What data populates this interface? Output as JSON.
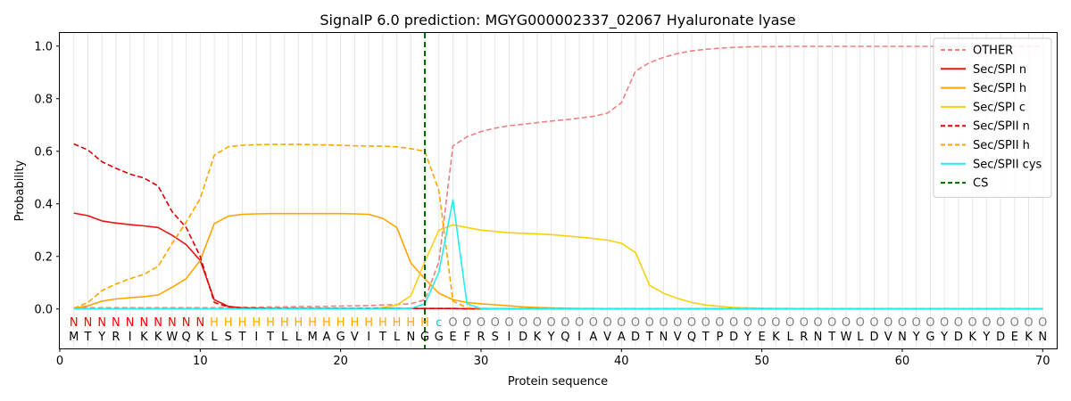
{
  "chart_data": {
    "type": "line",
    "title": "SignalP 6.0 prediction: MGYG000002337_02067 Hyaluronate lyase",
    "xlabel": "Protein sequence",
    "ylabel": "Probability",
    "xlim": [
      0,
      71
    ],
    "ylim": [
      -0.15,
      1.05
    ],
    "xticks": [
      0,
      10,
      20,
      30,
      40,
      50,
      60,
      70
    ],
    "yticks": [
      0.0,
      0.2,
      0.4,
      0.6,
      0.8,
      1.0
    ],
    "ytick_labels": [
      "0.0",
      "0.2",
      "0.4",
      "0.6",
      "0.8",
      "1.0"
    ],
    "grid": "vertical lines at each residue",
    "legend_position": "top-right",
    "cleavage_site": 26,
    "sequence": [
      "M",
      "T",
      "Y",
      "R",
      "I",
      "K",
      "K",
      "W",
      "Q",
      "K",
      "L",
      "S",
      "T",
      "I",
      "T",
      "L",
      "L",
      "M",
      "A",
      "G",
      "V",
      "I",
      "T",
      "L",
      "N",
      "G",
      "G",
      "E",
      "F",
      "R",
      "S",
      "I",
      "D",
      "K",
      "Y",
      "Q",
      "I",
      "A",
      "V",
      "A",
      "D",
      "T",
      "N",
      "V",
      "Q",
      "T",
      "P",
      "D",
      "Y",
      "E",
      "K",
      "L",
      "R",
      "N",
      "T",
      "W",
      "L",
      "D",
      "V",
      "N",
      "Y",
      "G",
      "Y",
      "D",
      "K",
      "Y",
      "D",
      "E",
      "K",
      "N"
    ],
    "region_labels": [
      "N",
      "N",
      "N",
      "N",
      "N",
      "N",
      "N",
      "N",
      "N",
      "N",
      "H",
      "H",
      "H",
      "H",
      "H",
      "H",
      "H",
      "H",
      "H",
      "H",
      "H",
      "H",
      "H",
      "H",
      "H",
      "H",
      "c",
      "O",
      "O",
      "O",
      "O",
      "O",
      "O",
      "O",
      "O",
      "O",
      "O",
      "O",
      "O",
      "O",
      "O",
      "O",
      "O",
      "O",
      "O",
      "O",
      "O",
      "O",
      "O",
      "O",
      "O",
      "O",
      "O",
      "O",
      "O",
      "O",
      "O",
      "O",
      "O",
      "O",
      "O",
      "O",
      "O",
      "O",
      "O",
      "O",
      "O",
      "O",
      "O",
      "O"
    ],
    "region_colors": {
      "N": "#ff0000",
      "H": "#ffa500",
      "c": "#00c8c8",
      "O": "#808080"
    },
    "series": [
      {
        "name": "OTHER",
        "color": "#f08080",
        "dash": true,
        "values": [
          0.005,
          0.005,
          0.005,
          0.005,
          0.005,
          0.005,
          0.005,
          0.005,
          0.005,
          0.005,
          0.005,
          0.006,
          0.007,
          0.007,
          0.008,
          0.008,
          0.009,
          0.009,
          0.01,
          0.011,
          0.012,
          0.013,
          0.015,
          0.017,
          0.02,
          0.035,
          0.18,
          0.62,
          0.655,
          0.675,
          0.688,
          0.697,
          0.703,
          0.709,
          0.715,
          0.72,
          0.726,
          0.733,
          0.745,
          0.785,
          0.905,
          0.937,
          0.957,
          0.972,
          0.982,
          0.988,
          0.992,
          0.995,
          0.997,
          0.998,
          0.998,
          0.999,
          0.999,
          0.999,
          0.999,
          0.999,
          0.999,
          0.999,
          0.999,
          0.999,
          0.999,
          0.999,
          0.999,
          0.999,
          0.999,
          0.999,
          0.999,
          0.999,
          0.999,
          0.999
        ]
      },
      {
        "name": "Sec/SPI n",
        "color": "#ee1111",
        "dash": false,
        "values": [
          0.365,
          0.355,
          0.335,
          0.327,
          0.321,
          0.316,
          0.31,
          0.28,
          0.245,
          0.185,
          0.035,
          0.01,
          0.004,
          0.003,
          0.002,
          0.002,
          0.002,
          0.002,
          0.002,
          0.002,
          0.002,
          0.002,
          0.002,
          0.002,
          0.002,
          0.002,
          0.002,
          0.002,
          0.001,
          0.001,
          0.001,
          0.001,
          0.001,
          0.001,
          0.001,
          0.001,
          0.001,
          0.001,
          0.001,
          0.001,
          0.001,
          0.001,
          0.001,
          0.001,
          0.001,
          0.001,
          0.001,
          0.001,
          0.001,
          0.001,
          0.001,
          0.001,
          0.001,
          0.001,
          0.001,
          0.001,
          0.001,
          0.001,
          0.001,
          0.001,
          0.001,
          0.001,
          0.001,
          0.001,
          0.001,
          0.001,
          0.001,
          0.001,
          0.001,
          0.001
        ]
      },
      {
        "name": "Sec/SPI h",
        "color": "#ffa500",
        "dash": false,
        "values": [
          0.003,
          0.012,
          0.03,
          0.038,
          0.043,
          0.047,
          0.053,
          0.083,
          0.115,
          0.185,
          0.325,
          0.353,
          0.36,
          0.362,
          0.363,
          0.363,
          0.363,
          0.363,
          0.363,
          0.363,
          0.362,
          0.36,
          0.345,
          0.31,
          0.175,
          0.115,
          0.06,
          0.035,
          0.025,
          0.02,
          0.016,
          0.012,
          0.008,
          0.006,
          0.004,
          0.003,
          0.002,
          0.002,
          0.001,
          0.001,
          0.001,
          0.001,
          0.001,
          0.001,
          0.001,
          0.001,
          0.001,
          0.001,
          0.001,
          0.001,
          0.001,
          0.001,
          0.001,
          0.001,
          0.001,
          0.001,
          0.001,
          0.001,
          0.001,
          0.001,
          0.001,
          0.001,
          0.001,
          0.001,
          0.001,
          0.001,
          0.001,
          0.001,
          0.001,
          0.001
        ]
      },
      {
        "name": "Sec/SPI c",
        "color": "#f7d10a",
        "dash": false,
        "values": [
          0.001,
          0.001,
          0.001,
          0.001,
          0.001,
          0.001,
          0.001,
          0.001,
          0.001,
          0.001,
          0.001,
          0.001,
          0.001,
          0.001,
          0.001,
          0.001,
          0.001,
          0.001,
          0.001,
          0.001,
          0.001,
          0.002,
          0.005,
          0.015,
          0.05,
          0.18,
          0.3,
          0.32,
          0.31,
          0.3,
          0.295,
          0.29,
          0.288,
          0.286,
          0.283,
          0.278,
          0.274,
          0.268,
          0.262,
          0.25,
          0.215,
          0.09,
          0.06,
          0.04,
          0.025,
          0.015,
          0.01,
          0.006,
          0.004,
          0.003,
          0.002,
          0.002,
          0.001,
          0.001,
          0.001,
          0.001,
          0.001,
          0.001,
          0.001,
          0.001,
          0.001,
          0.001,
          0.001,
          0.001,
          0.001,
          0.001,
          0.001,
          0.001,
          0.001,
          0.001
        ]
      },
      {
        "name": "Sec/SPII n",
        "color": "#dd0000",
        "dash": true,
        "values": [
          0.628,
          0.605,
          0.56,
          0.535,
          0.513,
          0.498,
          0.468,
          0.37,
          0.31,
          0.2,
          0.025,
          0.008,
          0.004,
          0.003,
          0.002,
          0.002,
          0.002,
          0.002,
          0.002,
          0.002,
          0.002,
          0.002,
          0.002,
          0.002,
          0.002,
          0.002,
          0.002,
          0.002,
          0.001,
          0.001,
          0.001,
          0.001,
          0.001,
          0.001,
          0.001,
          0.001,
          0.001,
          0.001,
          0.001,
          0.001,
          0.001,
          0.001,
          0.001,
          0.001,
          0.001,
          0.001,
          0.001,
          0.001,
          0.001,
          0.001,
          0.001,
          0.001,
          0.001,
          0.001,
          0.001,
          0.001,
          0.001,
          0.001,
          0.001,
          0.001,
          0.001,
          0.001,
          0.001,
          0.001,
          0.001,
          0.001,
          0.001,
          0.001,
          0.001,
          0.001
        ]
      },
      {
        "name": "Sec/SPII h",
        "color": "#ffa500",
        "dash": true,
        "values": [
          0.003,
          0.025,
          0.07,
          0.095,
          0.115,
          0.132,
          0.162,
          0.25,
          0.33,
          0.42,
          0.585,
          0.617,
          0.623,
          0.625,
          0.626,
          0.626,
          0.626,
          0.625,
          0.624,
          0.623,
          0.621,
          0.62,
          0.619,
          0.617,
          0.61,
          0.6,
          0.45,
          0.03,
          0.005,
          0.003,
          0.002,
          0.002,
          0.001,
          0.001,
          0.001,
          0.001,
          0.001,
          0.001,
          0.001,
          0.001,
          0.001,
          0.001,
          0.001,
          0.001,
          0.001,
          0.001,
          0.001,
          0.001,
          0.001,
          0.001,
          0.001,
          0.001,
          0.001,
          0.001,
          0.001,
          0.001,
          0.001,
          0.001,
          0.001,
          0.001,
          0.001,
          0.001,
          0.001,
          0.001,
          0.001,
          0.001,
          0.001,
          0.001,
          0.001,
          0.001
        ]
      },
      {
        "name": "Sec/SPII cys",
        "color": "#22eeee",
        "dash": false,
        "values": [
          0.001,
          0.001,
          0.001,
          0.001,
          0.001,
          0.001,
          0.001,
          0.001,
          0.001,
          0.001,
          0.001,
          0.001,
          0.001,
          0.001,
          0.001,
          0.001,
          0.001,
          0.001,
          0.001,
          0.001,
          0.001,
          0.001,
          0.001,
          0.001,
          0.002,
          0.02,
          0.14,
          0.415,
          0.02,
          0.002,
          0.001,
          0.001,
          0.001,
          0.001,
          0.001,
          0.001,
          0.001,
          0.001,
          0.001,
          0.001,
          0.001,
          0.001,
          0.001,
          0.001,
          0.001,
          0.001,
          0.001,
          0.001,
          0.001,
          0.001,
          0.001,
          0.001,
          0.001,
          0.001,
          0.001,
          0.001,
          0.001,
          0.001,
          0.001,
          0.001,
          0.001,
          0.001,
          0.001,
          0.001,
          0.001,
          0.001,
          0.001,
          0.001,
          0.001,
          0.001
        ]
      },
      {
        "name": "CS",
        "color": "#006400",
        "dash": true,
        "type": "vline",
        "x": 26
      }
    ]
  }
}
